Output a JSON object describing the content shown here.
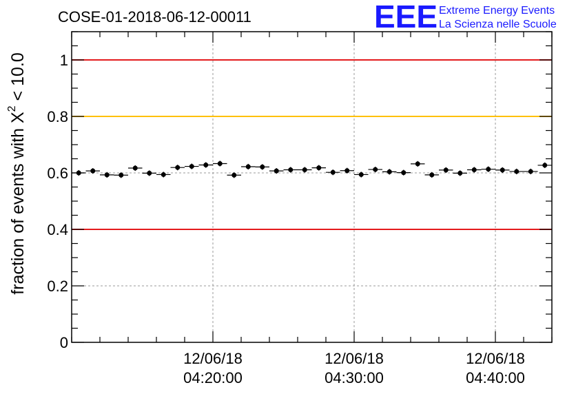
{
  "title": "COSE-01-2018-06-12-00011",
  "logo": {
    "mark": "EEE",
    "line1": "Extreme Energy Events",
    "line2": "La Scienza nelle Scuole",
    "color": "#1a1aff"
  },
  "colors": {
    "limit_red": "#e41a1c",
    "limit_yellow": "#ffc000",
    "points": "#000000",
    "grid": "#9a9a9a"
  },
  "chart_data": {
    "type": "scatter",
    "title": "COSE-01-2018-06-12-00011",
    "xlabel": "",
    "ylabel": "fraction of events with χ² < 10.0",
    "ylabel_parts": {
      "pre": "fraction of events with X",
      "sup": "2",
      "post": " < 10.0"
    },
    "ylim": [
      0,
      1.1
    ],
    "xlim": [
      "2018-06-12 04:10:00",
      "2018-06-12 04:44:00"
    ],
    "yticks": [
      {
        "value": 0,
        "label": "0"
      },
      {
        "value": 0.2,
        "label": "0.2"
      },
      {
        "value": 0.4,
        "label": "0.4"
      },
      {
        "value": 0.6,
        "label": "0.6"
      },
      {
        "value": 0.8,
        "label": "0.8"
      },
      {
        "value": 1.0,
        "label": "1"
      }
    ],
    "xticks": [
      {
        "time": "2018-06-12 04:20:00",
        "date_label": "12/06/18",
        "time_label": "04:20:00"
      },
      {
        "time": "2018-06-12 04:30:00",
        "date_label": "12/06/18",
        "time_label": "04:30:00"
      },
      {
        "time": "2018-06-12 04:40:00",
        "date_label": "12/06/18",
        "time_label": "04:40:00"
      }
    ],
    "grid": true,
    "reference_lines": [
      {
        "y": 1.0,
        "color": "#e41a1c"
      },
      {
        "y": 0.8,
        "color": "#ffc000"
      },
      {
        "y": 0.4,
        "color": "#e41a1c"
      }
    ],
    "series": [
      {
        "x": [
          "2018-06-12 04:10:30",
          "2018-06-12 04:11:30",
          "2018-06-12 04:12:30",
          "2018-06-12 04:13:30",
          "2018-06-12 04:14:30",
          "2018-06-12 04:15:30",
          "2018-06-12 04:16:30",
          "2018-06-12 04:17:30",
          "2018-06-12 04:18:30",
          "2018-06-12 04:19:30",
          "2018-06-12 04:20:30",
          "2018-06-12 04:21:30",
          "2018-06-12 04:22:30",
          "2018-06-12 04:23:30",
          "2018-06-12 04:24:30",
          "2018-06-12 04:25:30",
          "2018-06-12 04:26:30",
          "2018-06-12 04:27:30",
          "2018-06-12 04:28:30",
          "2018-06-12 04:29:30",
          "2018-06-12 04:30:30",
          "2018-06-12 04:31:30",
          "2018-06-12 04:32:30",
          "2018-06-12 04:33:30",
          "2018-06-12 04:34:30",
          "2018-06-12 04:35:30",
          "2018-06-12 04:36:30",
          "2018-06-12 04:37:30",
          "2018-06-12 04:38:30",
          "2018-06-12 04:39:30",
          "2018-06-12 04:40:30",
          "2018-06-12 04:41:30",
          "2018-06-12 04:42:30",
          "2018-06-12 04:43:30"
        ],
        "values": [
          0.6,
          0.607,
          0.593,
          0.592,
          0.617,
          0.599,
          0.594,
          0.619,
          0.623,
          0.628,
          0.633,
          0.592,
          0.622,
          0.621,
          0.607,
          0.611,
          0.611,
          0.618,
          0.602,
          0.608,
          0.594,
          0.612,
          0.604,
          0.601,
          0.632,
          0.593,
          0.61,
          0.599,
          0.611,
          0.613,
          0.61,
          0.605,
          0.605,
          0.627
        ],
        "errors": [
          0.01,
          0.01,
          0.01,
          0.01,
          0.01,
          0.01,
          0.01,
          0.01,
          0.01,
          0.01,
          0.01,
          0.01,
          0.01,
          0.01,
          0.01,
          0.01,
          0.01,
          0.01,
          0.01,
          0.01,
          0.01,
          0.01,
          0.01,
          0.01,
          0.01,
          0.01,
          0.01,
          0.01,
          0.01,
          0.01,
          0.01,
          0.01,
          0.01,
          0.01
        ],
        "bin_width_minutes": 1
      }
    ]
  }
}
